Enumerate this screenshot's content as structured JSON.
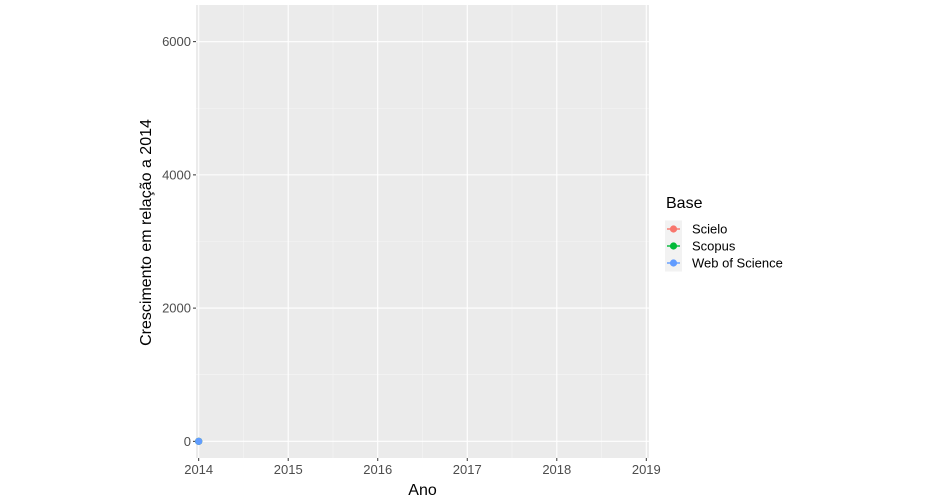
{
  "chart_data": {
    "type": "line",
    "title": "",
    "xlabel": "Ano",
    "ylabel": "Crescimento em relação a 2014",
    "x": [
      2014,
      2015,
      2016,
      2017,
      2018,
      2019
    ],
    "xlim": [
      2013.97,
      2019.03
    ],
    "ylim": [
      -250,
      6550
    ],
    "x_ticks": [
      "2014",
      "2015",
      "2016",
      "2017",
      "2018",
      "2019"
    ],
    "y_ticks": [
      "0",
      "2000",
      "4000",
      "6000"
    ],
    "grid": true,
    "legend": {
      "title": "Base",
      "placement": "right"
    },
    "series": [
      {
        "name": "Scielo",
        "color": "#F8766D",
        "values": [
          0,
          null,
          null,
          null,
          null,
          null
        ]
      },
      {
        "name": "Scopus",
        "color": "#00BA38",
        "values": [
          0,
          null,
          null,
          null,
          null,
          null
        ]
      },
      {
        "name": "Web of Science",
        "color": "#619CFF",
        "values": [
          0,
          null,
          null,
          null,
          null,
          null
        ]
      }
    ]
  }
}
